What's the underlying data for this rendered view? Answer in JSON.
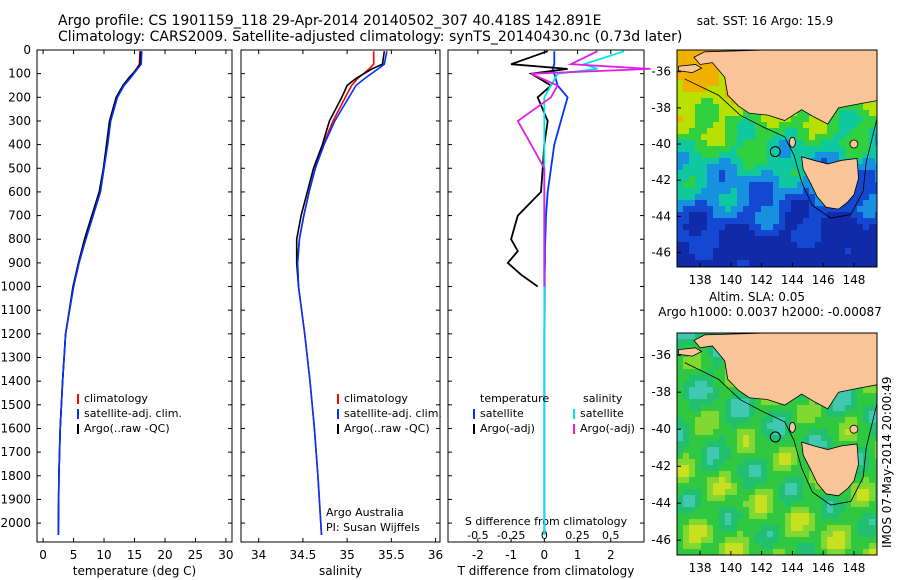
{
  "header": {
    "line1": "Argo profile: CS 1901159_118 29-Apr-2014 20140502_307 40.418S 142.891E",
    "line2": "Climatology: CARS2009. Satellite-adjusted climatology: synTS_20140430.nc (0.73d later)"
  },
  "stamp": "IMOS 07-May-2014 20:00:49",
  "colors": {
    "climatology": "#ff0000",
    "satellite": "#0033ff",
    "argo": "#000000",
    "sal_satellite": "#00e5e5",
    "sal_argo": "#e020e0",
    "land": "#f9c497",
    "ocean_low": "#1020c0",
    "ocean_mid": "#20d060",
    "ocean_high": "#f0c000"
  },
  "chart_data": [
    {
      "type": "line",
      "xlabel": "temperature (deg C)",
      "xticks": [
        0,
        5,
        10,
        15,
        20,
        25,
        30
      ],
      "xlim": [
        -1,
        31
      ],
      "ylim": [
        0,
        2080
      ],
      "yticks": [
        0,
        100,
        200,
        300,
        400,
        500,
        600,
        700,
        800,
        900,
        1000,
        1100,
        1200,
        1300,
        1400,
        1500,
        1600,
        1700,
        1800,
        1900,
        2000
      ],
      "y_reversed": true,
      "depth": [
        5,
        60,
        80,
        120,
        150,
        200,
        300,
        400,
        500,
        600,
        700,
        800,
        900,
        1000,
        1200,
        1400,
        1600,
        1800,
        2050
      ],
      "series": [
        {
          "name": "climatology",
          "values": [
            15.9,
            15.8,
            15.3,
            14.2,
            13.2,
            12.1,
            11.0,
            10.5,
            10.0,
            9.4,
            8.2,
            7.0,
            5.9,
            5.0,
            3.7,
            3.2,
            2.8,
            2.6,
            2.5
          ]
        },
        {
          "name": "satellite-adj. clim.",
          "values": [
            16.2,
            16.1,
            15.5,
            14.3,
            13.3,
            12.2,
            11.1,
            10.6,
            10.0,
            9.4,
            8.2,
            7.0,
            5.9,
            5.0,
            3.7,
            3.2,
            2.8,
            2.6,
            2.5
          ]
        },
        {
          "name": "Argo(..raw -QC)",
          "values": [
            16.0,
            15.9,
            15.4,
            14.0,
            13.1,
            12.0,
            10.9,
            10.4,
            9.9,
            9.2,
            8.0,
            6.8,
            5.8,
            4.9,
            3.7,
            3.2,
            2.8,
            2.6,
            2.5
          ]
        }
      ]
    },
    {
      "type": "line",
      "xlabel": "salinity",
      "xticks": [
        34,
        34.5,
        35,
        35.5,
        36
      ],
      "xlim": [
        33.8,
        36.05
      ],
      "ylim": [
        0,
        2080
      ],
      "y_reversed": true,
      "depth": [
        5,
        60,
        80,
        120,
        150,
        200,
        300,
        400,
        500,
        600,
        700,
        800,
        900,
        1000,
        1200,
        1400,
        1600,
        1800,
        2050
      ],
      "series": [
        {
          "name": "climatology",
          "values": [
            35.3,
            35.3,
            35.25,
            35.12,
            35.05,
            34.98,
            34.84,
            34.73,
            34.64,
            34.57,
            34.51,
            34.46,
            34.44,
            34.45,
            34.52,
            34.58,
            34.63,
            34.67,
            34.71
          ]
        },
        {
          "name": "satellite-adj. clim.",
          "values": [
            35.45,
            35.42,
            35.35,
            35.2,
            35.1,
            35.02,
            34.86,
            34.74,
            34.64,
            34.57,
            34.51,
            34.46,
            34.44,
            34.45,
            34.52,
            34.58,
            34.63,
            34.67,
            34.71
          ]
        },
        {
          "name": "Argo(..raw -QC)",
          "values": [
            35.42,
            35.4,
            35.28,
            35.1,
            35.0,
            34.94,
            34.8,
            34.72,
            34.62,
            34.55,
            34.48,
            34.43,
            34.43,
            34.45
          ]
        }
      ],
      "annotations": [
        "Argo Australia",
        "PI: Susan Wijffels"
      ]
    },
    {
      "type": "line",
      "xlabel": "T difference from climatology",
      "xticks": [
        -2,
        -1,
        0,
        1,
        2
      ],
      "xlabel_top": "S difference from climatology",
      "xticks_top": [
        "-0.5",
        "-0.25",
        "0",
        "0.25",
        "0.5"
      ],
      "xlim": [
        -2.9,
        3.0
      ],
      "ylim": [
        0,
        2080
      ],
      "y_reversed": true,
      "legend_left_title": "temperature",
      "legend_right_title": "salinity",
      "depth": [
        5,
        60,
        80,
        100,
        150,
        200,
        300,
        400,
        500,
        600,
        700,
        750,
        800,
        850,
        900,
        950,
        1000,
        1200,
        1400,
        1600,
        1800,
        2050
      ],
      "series": [
        {
          "name": "satellite",
          "group": "temperature",
          "values": [
            0.3,
            0.3,
            0.25,
            0.3,
            0.4,
            0.7,
            0.5,
            0.3,
            0.2,
            0.1,
            0.05,
            0.04,
            0.03,
            0.02,
            0.02,
            0.01,
            0.01,
            0,
            0,
            0,
            0,
            0
          ]
        },
        {
          "name": "Argo(-adj)",
          "group": "temperature",
          "values": [
            0.1,
            -1.0,
            0.7,
            -0.4,
            0.2,
            -0.2,
            0.1,
            0.0,
            -0.05,
            -0.1,
            -0.8,
            -0.9,
            -1.0,
            -0.8,
            -1.1,
            -0.7,
            -0.2
          ]
        },
        {
          "name": "satellite",
          "group": "salinity",
          "values": [
            0.6,
            0.3,
            0.4,
            0.1,
            0.05,
            0.0,
            0.0,
            0.0,
            0.0,
            0.0,
            0.0,
            0.0,
            0.0,
            0.0,
            0.0,
            0.0,
            0.0,
            0.0,
            0.0,
            0.0,
            0.0,
            0.0
          ]
        },
        {
          "name": "Argo(-adj)",
          "group": "salinity",
          "values": [
            0.4,
            0.2,
            0.8,
            -0.1,
            0.1,
            0.05,
            -0.2,
            -0.1,
            0.0,
            0.0,
            0.0,
            0.0,
            0.0,
            0.0,
            0.0,
            0.0,
            0.0
          ]
        }
      ]
    },
    {
      "type": "heatmap",
      "title": "sat. SST: 16 Argo: 15.9",
      "xticks": [
        138,
        140,
        142,
        144,
        146,
        148
      ],
      "yticks": [
        -36,
        -38,
        -40,
        -42,
        -44,
        -46
      ],
      "xlim": [
        136.5,
        149.5
      ],
      "ylim": [
        -46.8,
        -34.8
      ],
      "marker": {
        "lon": 142.891,
        "lat": -40.418
      }
    },
    {
      "type": "heatmap",
      "title_line1": "Altim. SLA: 0.05",
      "title_line2": "Argo h1000: 0.0037 h2000: -0.00087",
      "xticks": [
        138,
        140,
        142,
        144,
        146,
        148
      ],
      "yticks": [
        -36,
        -38,
        -40,
        -42,
        -44,
        -46
      ],
      "xlim": [
        136.5,
        149.5
      ],
      "ylim": [
        -46.8,
        -34.8
      ],
      "marker": {
        "lon": 142.891,
        "lat": -40.418
      }
    }
  ]
}
